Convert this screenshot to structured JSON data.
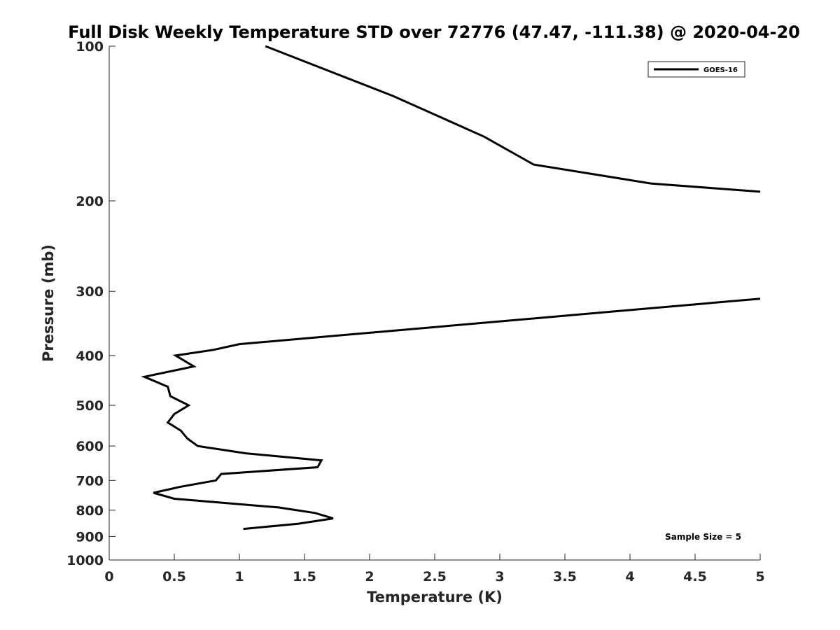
{
  "chart_data": {
    "type": "line",
    "title": "Full Disk Weekly Temperature STD over 72776 (47.47, -111.38) @ 2020-04-20",
    "xlabel": "Temperature (K)",
    "ylabel": "Pressure (mb)",
    "xlim": [
      0,
      5
    ],
    "ylim": [
      100,
      1000
    ],
    "y_scale": "log",
    "y_reversed": true,
    "grid": false,
    "legend_position": "top-right",
    "x_ticks": [
      0,
      0.5,
      1,
      1.5,
      2,
      2.5,
      3,
      3.5,
      4,
      4.5,
      5
    ],
    "x_tick_labels": [
      "0",
      "0.5",
      "1",
      "1.5",
      "2",
      "2.5",
      "3",
      "3.5",
      "4",
      "4.5",
      "5"
    ],
    "y_ticks": [
      100,
      200,
      300,
      400,
      500,
      600,
      700,
      800,
      900,
      1000
    ],
    "y_tick_labels": [
      "100",
      "200",
      "300",
      "400",
      "500",
      "600",
      "700",
      "800",
      "900",
      "1000"
    ],
    "series": [
      {
        "name": "GOES-16",
        "color": "#000000",
        "segments": [
          {
            "x": [
              1.2,
              2.18,
              2.88,
              3.26,
              4.16,
              5.0
            ],
            "y": [
              100,
              125,
              150,
              170,
              185,
              192
            ]
          },
          {
            "x": [
              5.0,
              1.0,
              0.8,
              0.51,
              0.65,
              0.27,
              0.45,
              0.47,
              0.61,
              0.5,
              0.45,
              0.55,
              0.6,
              0.68,
              1.05,
              1.63,
              1.6,
              0.86,
              0.82,
              0.55,
              0.34,
              0.5,
              1.3,
              1.58,
              1.72,
              1.45,
              1.03
            ],
            "y": [
              310,
              380,
              390,
              400,
              420,
              440,
              460,
              480,
              500,
              520,
              540,
              560,
              580,
              600,
              620,
              640,
              660,
              680,
              700,
              720,
              740,
              760,
              790,
              810,
              830,
              850,
              870
            ]
          }
        ]
      }
    ],
    "annotations": [
      {
        "text": "Sample Size = 5",
        "position": "bottom-right"
      }
    ]
  }
}
